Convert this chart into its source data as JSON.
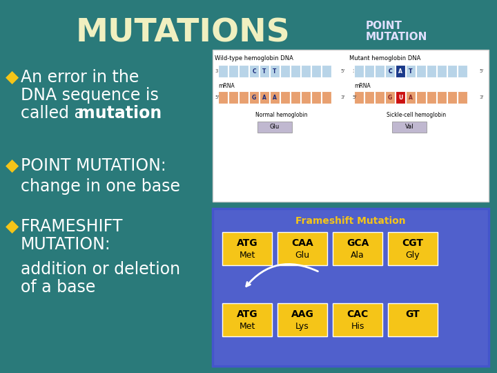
{
  "background_color": "#2a7a7a",
  "title": "MUTATIONS",
  "title_color": "#f0f0c0",
  "title_fontsize": 36,
  "point_mutation_label": "POINT\nMUTATION",
  "point_mutation_color": "#e0e0ff",
  "bullet_color": "#f5c518",
  "text_color": "#ffffff",
  "frameshift_box_color": "#5566dd",
  "codon_box_color": "#f5c518",
  "frameshift_title": "Frameshift Mutation",
  "frameshift_title_color": "#f5c518",
  "top_row_codons": [
    "ATG",
    "CAA",
    "GCA",
    "CGT"
  ],
  "top_row_aa": [
    "Met",
    "Glu",
    "Ala",
    "Gly"
  ],
  "bottom_row_codons": [
    "ATG",
    "AAG",
    "CAC",
    "GT"
  ],
  "bottom_row_aa": [
    "Met",
    "Lys",
    "His",
    ""
  ],
  "codon_text_color": "#000000"
}
